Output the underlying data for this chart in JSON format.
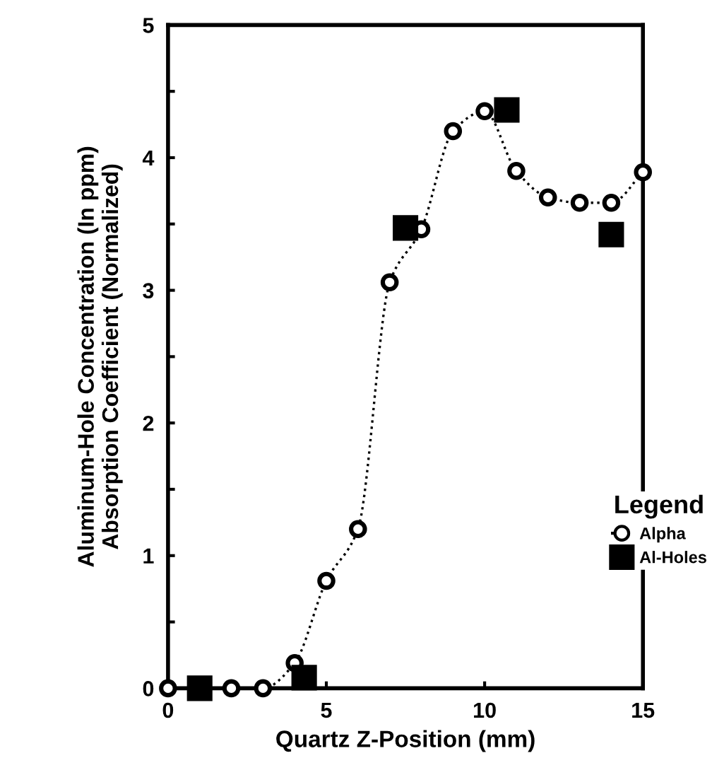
{
  "chart_data": {
    "type": "line",
    "xlabel": "Quartz Z-Position (mm)",
    "ylabel": "Aluminum-Hole Concentration (In ppm)\nAbsorption Coefficient (Normalized)",
    "xlim": [
      0,
      15
    ],
    "ylim": [
      0,
      5
    ],
    "xticks": [
      0,
      5,
      10,
      15
    ],
    "yticks": [
      0,
      {
        "value": 0.5,
        "label": null
      },
      1,
      {
        "value": 1.5,
        "label": null
      },
      2,
      {
        "value": 2.5,
        "label": null
      },
      3,
      {
        "value": 3.5,
        "label": null
      },
      4,
      {
        "value": 4.5,
        "label": null
      },
      5
    ],
    "grid": false,
    "legend": "right",
    "legend_title": "Legend",
    "series": [
      {
        "name": "Alpha",
        "color": "#000000",
        "marker": "circle",
        "line_style": "dotted",
        "x": [
          0,
          2,
          3,
          4,
          5,
          6,
          7,
          8,
          9,
          10,
          11,
          12,
          13,
          14,
          15
        ],
        "values": [
          0,
          0,
          0,
          0.19,
          0.81,
          1.2,
          3.06,
          3.46,
          4.2,
          4.35,
          3.9,
          3.7,
          3.66,
          3.66,
          3.89
        ]
      },
      {
        "name": "Al-Holes",
        "type": "scatter",
        "color": "#000000",
        "marker": "square",
        "x": [
          1,
          4.3,
          7.5,
          10.7,
          14
        ],
        "values": [
          0,
          0.08,
          3.47,
          4.36,
          3.42
        ]
      }
    ]
  }
}
